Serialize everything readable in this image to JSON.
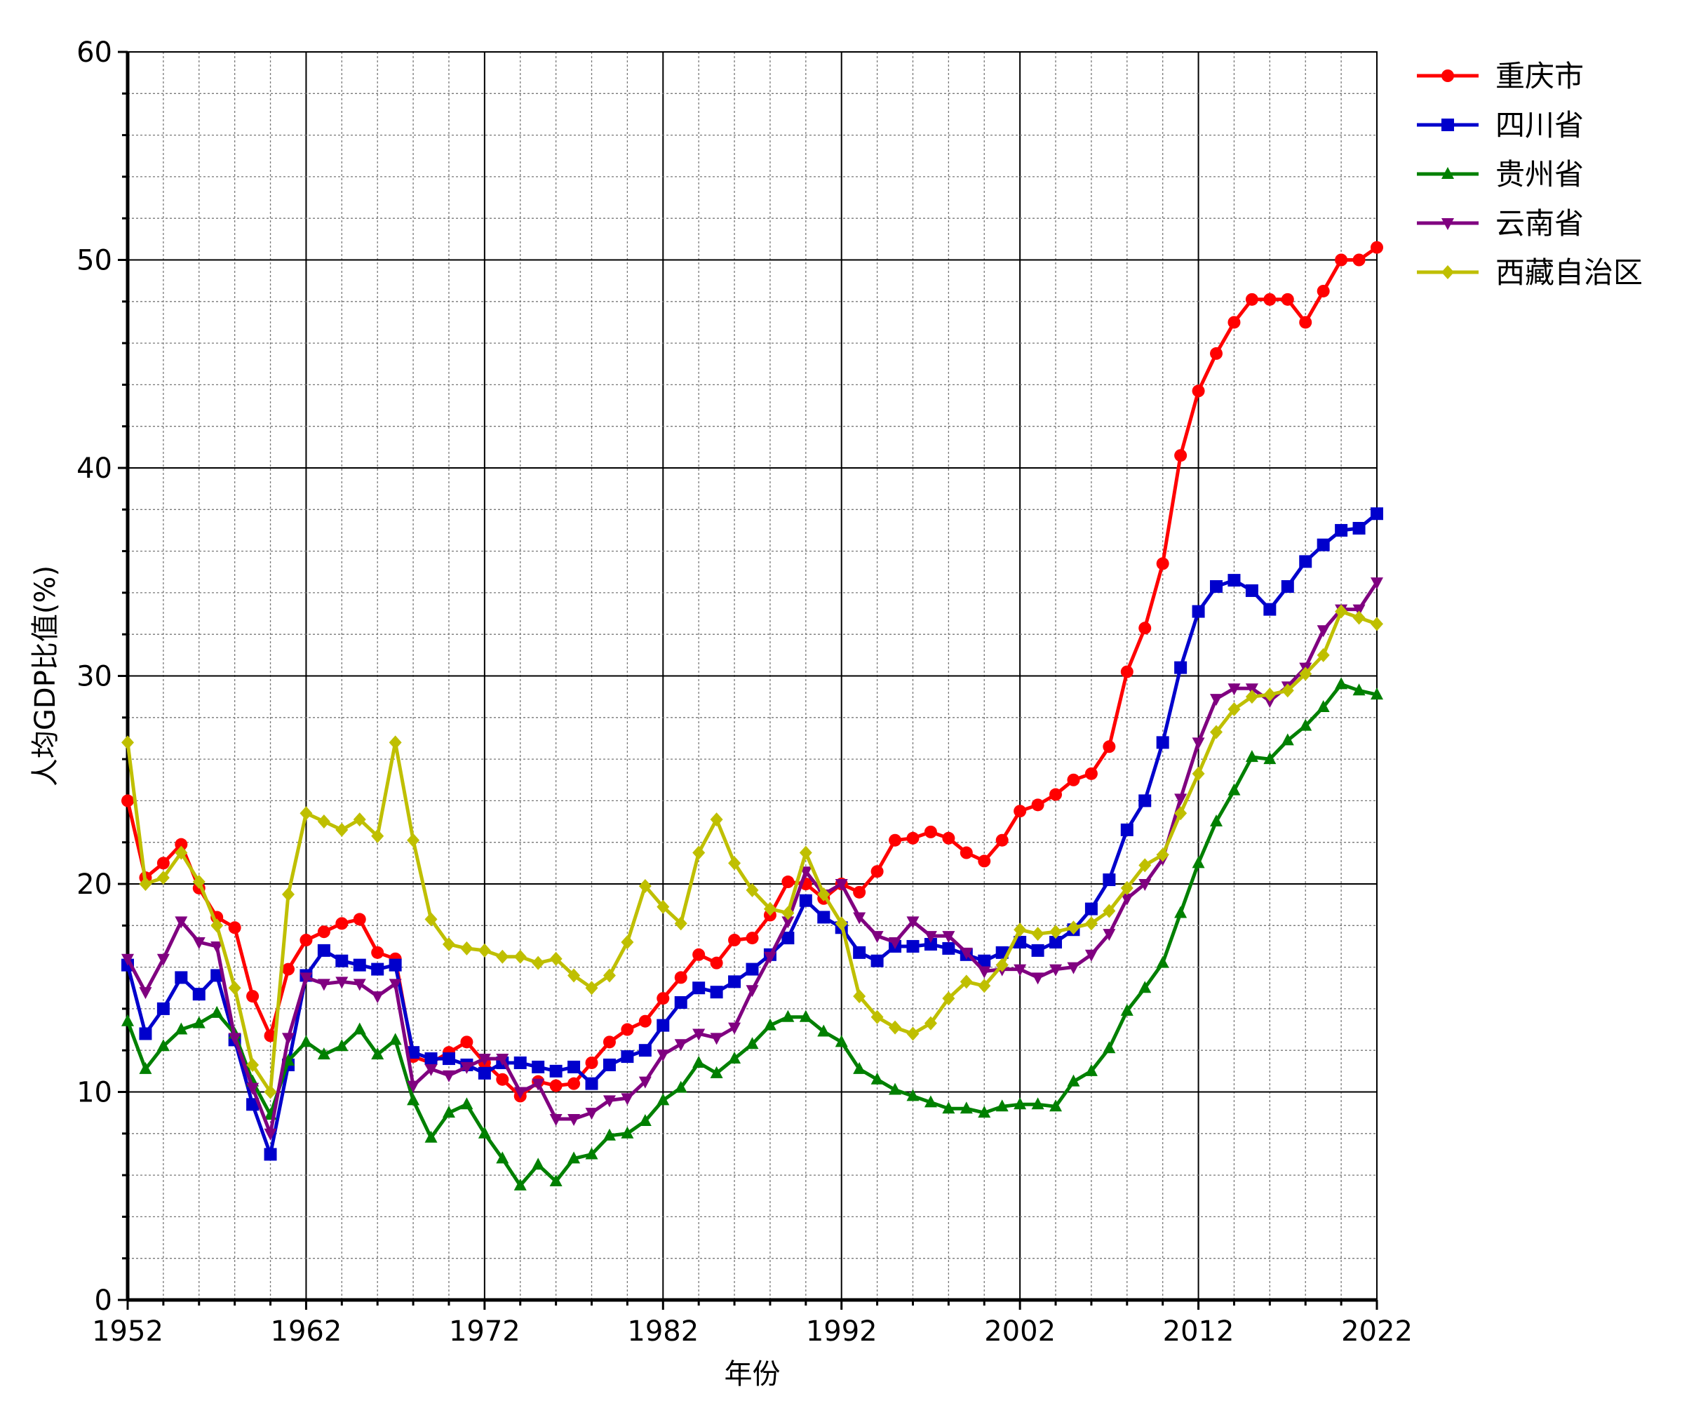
{
  "chart_data": {
    "type": "line",
    "xlabel": "年份",
    "ylabel": "人均GDP比值(%)",
    "xlim": [
      1952,
      2022
    ],
    "ylim": [
      0,
      60
    ],
    "x_ticks": [
      "1952",
      "1962",
      "1972",
      "1982",
      "1992",
      "2002",
      "2012",
      "2022"
    ],
    "y_ticks": [
      "0",
      "10",
      "20",
      "30",
      "40",
      "50",
      "60"
    ],
    "grid": true,
    "legend_position": "top-right (outside plot)",
    "x": [
      1952,
      1953,
      1954,
      1955,
      1956,
      1957,
      1958,
      1959,
      1960,
      1961,
      1962,
      1963,
      1964,
      1965,
      1966,
      1967,
      1968,
      1969,
      1970,
      1971,
      1972,
      1973,
      1974,
      1975,
      1976,
      1977,
      1978,
      1979,
      1980,
      1981,
      1982,
      1983,
      1984,
      1985,
      1986,
      1987,
      1988,
      1989,
      1990,
      1991,
      1992,
      1993,
      1994,
      1995,
      1996,
      1997,
      1998,
      1999,
      2000,
      2001,
      2002,
      2003,
      2004,
      2005,
      2006,
      2007,
      2008,
      2009,
      2010,
      2011,
      2012,
      2013,
      2014,
      2015,
      2016,
      2017,
      2018,
      2019,
      2020,
      2021,
      2022
    ],
    "series": [
      {
        "name": "重庆市",
        "color": "#ff0000",
        "marker": "circle",
        "values": [
          24.0,
          20.3,
          21.0,
          21.9,
          19.8,
          18.4,
          17.9,
          14.6,
          12.7,
          15.9,
          17.3,
          17.7,
          18.1,
          18.3,
          16.7,
          16.4,
          11.7,
          11.4,
          11.9,
          12.4,
          11.4,
          10.6,
          9.8,
          10.5,
          10.3,
          10.4,
          11.4,
          12.4,
          13.0,
          13.4,
          14.5,
          15.5,
          16.6,
          16.2,
          17.3,
          17.4,
          18.5,
          20.1,
          20.0,
          19.3,
          20.0,
          19.6,
          20.6,
          22.1,
          22.2,
          22.5,
          22.2,
          21.5,
          21.1,
          22.1,
          23.5,
          23.8,
          24.3,
          25.0,
          25.3,
          26.6,
          30.2,
          32.3,
          35.4,
          40.6,
          43.7,
          45.5,
          47.0,
          48.1,
          48.1,
          48.1,
          47.0,
          48.5,
          50.0,
          50.0,
          50.6
        ]
      },
      {
        "name": "四川省",
        "color": "#0000cc",
        "marker": "square",
        "values": [
          16.1,
          12.8,
          14.0,
          15.5,
          14.7,
          15.6,
          12.5,
          9.4,
          7.0,
          11.3,
          15.6,
          16.8,
          16.3,
          16.1,
          15.9,
          16.1,
          11.9,
          11.6,
          11.6,
          11.3,
          10.9,
          11.4,
          11.4,
          11.2,
          11.0,
          11.2,
          10.4,
          11.3,
          11.7,
          12.0,
          13.2,
          14.3,
          15.0,
          14.8,
          15.3,
          15.9,
          16.6,
          17.4,
          19.2,
          18.4,
          17.9,
          16.7,
          16.3,
          17.0,
          17.0,
          17.1,
          16.9,
          16.6,
          16.3,
          16.7,
          17.2,
          16.8,
          17.2,
          17.8,
          18.8,
          20.2,
          22.6,
          24.0,
          26.8,
          30.4,
          33.1,
          34.3,
          34.6,
          34.1,
          33.2,
          34.3,
          35.5,
          36.3,
          37.0,
          37.1,
          37.8
        ]
      },
      {
        "name": "贵州省",
        "color": "#008000",
        "marker": "triangle-up",
        "values": [
          13.4,
          11.1,
          12.2,
          13.0,
          13.3,
          13.8,
          12.8,
          10.5,
          8.9,
          11.5,
          12.4,
          11.8,
          12.2,
          13.0,
          11.8,
          12.5,
          9.6,
          7.8,
          9.0,
          9.4,
          8.0,
          6.8,
          5.5,
          6.5,
          5.7,
          6.8,
          7.0,
          7.9,
          8.0,
          8.6,
          9.6,
          10.2,
          11.4,
          10.9,
          11.6,
          12.3,
          13.2,
          13.6,
          13.6,
          12.9,
          12.4,
          11.1,
          10.6,
          10.1,
          9.8,
          9.5,
          9.2,
          9.2,
          9.0,
          9.3,
          9.4,
          9.4,
          9.3,
          10.5,
          11.0,
          12.1,
          13.9,
          15.0,
          16.2,
          18.6,
          21.0,
          23.0,
          24.5,
          26.1,
          26.0,
          26.9,
          27.6,
          28.5,
          29.6,
          29.3,
          29.1
        ]
      },
      {
        "name": "云南省",
        "color": "#800080",
        "marker": "triangle-down",
        "values": [
          16.4,
          14.8,
          16.4,
          18.2,
          17.2,
          17.0,
          12.6,
          10.2,
          8.0,
          12.6,
          15.5,
          15.2,
          15.3,
          15.2,
          14.6,
          15.2,
          10.3,
          11.1,
          10.8,
          11.2,
          11.6,
          11.6,
          10.0,
          10.4,
          8.7,
          8.7,
          9.0,
          9.6,
          9.7,
          10.5,
          11.8,
          12.3,
          12.8,
          12.6,
          13.1,
          14.9,
          16.5,
          18.2,
          20.6,
          19.5,
          20.0,
          18.4,
          17.5,
          17.2,
          18.2,
          17.5,
          17.5,
          16.7,
          15.8,
          15.9,
          15.9,
          15.5,
          15.9,
          16.0,
          16.6,
          17.6,
          19.3,
          20.0,
          21.2,
          24.1,
          26.8,
          28.9,
          29.4,
          29.4,
          28.8,
          29.5,
          30.4,
          32.2,
          33.2,
          33.2,
          34.5
        ]
      },
      {
        "name": "西藏自治区",
        "color": "#bfbf00",
        "marker": "diamond",
        "values": [
          26.8,
          20.0,
          20.3,
          21.5,
          20.1,
          18.0,
          15.0,
          11.3,
          10.0,
          19.5,
          23.4,
          23.0,
          22.6,
          23.1,
          22.3,
          26.8,
          22.1,
          18.3,
          17.1,
          16.9,
          16.8,
          16.5,
          16.5,
          16.2,
          16.4,
          15.6,
          15.0,
          15.6,
          17.2,
          19.9,
          18.9,
          18.1,
          21.5,
          23.1,
          21.0,
          19.7,
          18.8,
          18.6,
          21.5,
          19.5,
          18.1,
          14.6,
          13.6,
          13.1,
          12.8,
          13.3,
          14.5,
          15.3,
          15.1,
          16.1,
          17.8,
          17.6,
          17.7,
          17.9,
          18.1,
          18.7,
          19.8,
          20.9,
          21.4,
          23.4,
          25.3,
          27.3,
          28.4,
          29.0,
          29.1,
          29.3,
          30.1,
          31.0,
          33.1,
          32.8,
          32.5
        ]
      }
    ]
  }
}
